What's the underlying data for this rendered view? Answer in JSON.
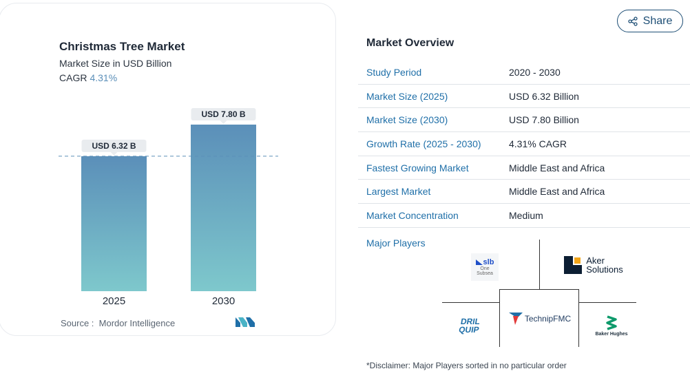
{
  "chart": {
    "title": "Christmas Tree Market",
    "subtitle": "Market Size in USD Billion",
    "cagr_label": "CAGR",
    "cagr_value": "4.31%",
    "source": "Source :  Mordor Intelligence"
  },
  "chart_data": {
    "type": "bar",
    "categories": [
      "2025",
      "2030"
    ],
    "values": [
      6.32,
      7.8
    ],
    "data_labels": [
      "USD 6.32 B",
      "USD 7.80 B"
    ],
    "title": "Christmas Tree Market",
    "ylabel": "",
    "reference_line": 6.32,
    "colors": {
      "bar_top": "#5b8fb9",
      "bar_bottom": "#7ec8cc"
    }
  },
  "share": {
    "label": "Share"
  },
  "overview": {
    "title": "Market Overview",
    "rows": [
      {
        "key": "Study Period",
        "value": "2020 - 2030"
      },
      {
        "key": "Market Size (2025)",
        "value": "USD 6.32 Billion"
      },
      {
        "key": "Market Size (2030)",
        "value": "USD 7.80 Billion"
      },
      {
        "key": "Growth Rate (2025 - 2030)",
        "value": "4.31% CAGR"
      },
      {
        "key": "Fastest Growing Market",
        "value": "Middle East and Africa"
      },
      {
        "key": "Largest Market",
        "value": "Middle East and Africa"
      },
      {
        "key": "Market Concentration",
        "value": "Medium"
      }
    ],
    "major_players_label": "Major Players"
  },
  "players": {
    "slb": {
      "name": "slb",
      "sub1": "One",
      "sub2": "Subsea"
    },
    "aker": {
      "line1": "Aker",
      "line2": "Solutions"
    },
    "technip": {
      "name": "TechnipFMC"
    },
    "drilquip": {
      "line1": "DRIL",
      "line2": "QUIP"
    },
    "baker": {
      "name": "Baker Hughes"
    }
  },
  "disclaimer": "*Disclaimer: Major Players sorted in no particular order"
}
